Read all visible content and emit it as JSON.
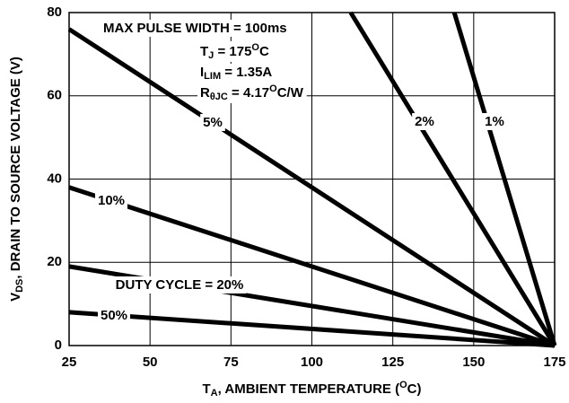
{
  "chart_data": {
    "type": "line",
    "xlabel": {
      "parts": [
        "T",
        "A",
        ", AMBIENT TEMPERATURE (",
        "O",
        "C)"
      ],
      "shifts": [
        "base",
        "sub",
        "base",
        "sup",
        "base"
      ]
    },
    "ylabel": {
      "parts": [
        "V",
        "DS",
        ", DRAIN TO SOURCE VOLTAGE (V)"
      ],
      "shifts": [
        "base",
        "sub",
        "base"
      ]
    },
    "xlim": [
      25,
      175
    ],
    "xticks": [
      25,
      50,
      75,
      100,
      125,
      150,
      175
    ],
    "ylim": [
      0,
      80
    ],
    "yticks": [
      0,
      20,
      40,
      60,
      80
    ],
    "grid": true,
    "series": [
      {
        "name": "5%",
        "color": "#000000",
        "x": [
          25,
          175
        ],
        "values": [
          76,
          0
        ]
      },
      {
        "name": "10%",
        "color": "#000000",
        "x": [
          25,
          175
        ],
        "values": [
          38,
          0
        ]
      },
      {
        "name": "DUTY CYCLE = 20%",
        "color": "#000000",
        "x": [
          25,
          175
        ],
        "values": [
          19,
          0
        ]
      },
      {
        "name": "50%",
        "color": "#000000",
        "x": [
          25,
          175
        ],
        "values": [
          8,
          0
        ]
      },
      {
        "name": "2%",
        "color": "#000000",
        "x": [
          112,
          175
        ],
        "values": [
          80,
          0
        ]
      },
      {
        "name": "1%",
        "color": "#000000",
        "x": [
          144,
          175
        ],
        "values": [
          80,
          0
        ]
      }
    ],
    "annotations": [
      {
        "parts": [
          "MAX PULSE WIDTH = 100ms"
        ],
        "shifts": [
          "base"
        ]
      },
      {
        "parts": [
          "T",
          "J",
          " = 175",
          "O",
          "C"
        ],
        "shifts": [
          "base",
          "sub",
          "base",
          "sup",
          "base"
        ]
      },
      {
        "parts": [
          "I",
          "LIM",
          " = 1.35A"
        ],
        "shifts": [
          "base",
          "sub",
          "base"
        ]
      },
      {
        "parts": [
          "R",
          "θJC",
          " = 4.17",
          "O",
          "C/W"
        ],
        "shifts": [
          "base",
          "sub",
          "base",
          "sup",
          "base"
        ]
      }
    ]
  }
}
